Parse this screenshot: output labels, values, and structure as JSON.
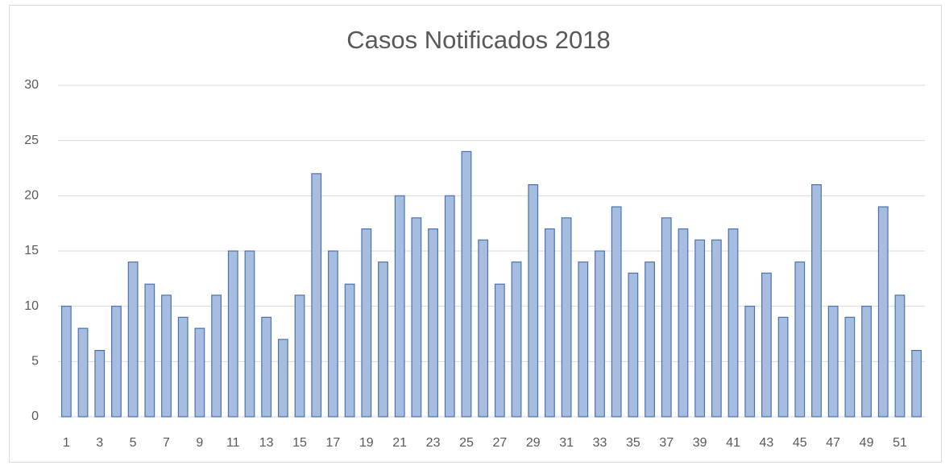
{
  "chart_data": {
    "type": "bar",
    "title": "Casos Notificados 2018",
    "categories": [
      "1",
      null,
      "3",
      null,
      "5",
      null,
      "7",
      null,
      "9",
      null,
      "11",
      null,
      "13",
      null,
      "15",
      null,
      "17",
      null,
      "19",
      null,
      "21",
      null,
      "23",
      null,
      "25",
      null,
      "27",
      null,
      "29",
      null,
      "31",
      null,
      "33",
      null,
      "35",
      null,
      "37",
      null,
      "39",
      null,
      "41",
      null,
      "43",
      null,
      "45",
      null,
      "47",
      null,
      "49",
      null,
      "51",
      null
    ],
    "values": [
      10,
      8,
      6,
      10,
      14,
      12,
      11,
      9,
      8,
      11,
      15,
      15,
      9,
      7,
      11,
      22,
      15,
      12,
      17,
      14,
      20,
      18,
      17,
      20,
      24,
      16,
      12,
      14,
      21,
      17,
      18,
      14,
      15,
      19,
      13,
      14,
      18,
      17,
      16,
      16,
      17,
      10,
      13,
      9,
      14,
      21,
      10,
      9,
      10,
      19,
      11,
      6
    ],
    "color": "#a6bde0",
    "edge_color": "#4a72b0",
    "ylim": [
      0,
      30
    ],
    "yticks": [
      0,
      5,
      10,
      15,
      20,
      25,
      30
    ],
    "grid": true
  }
}
